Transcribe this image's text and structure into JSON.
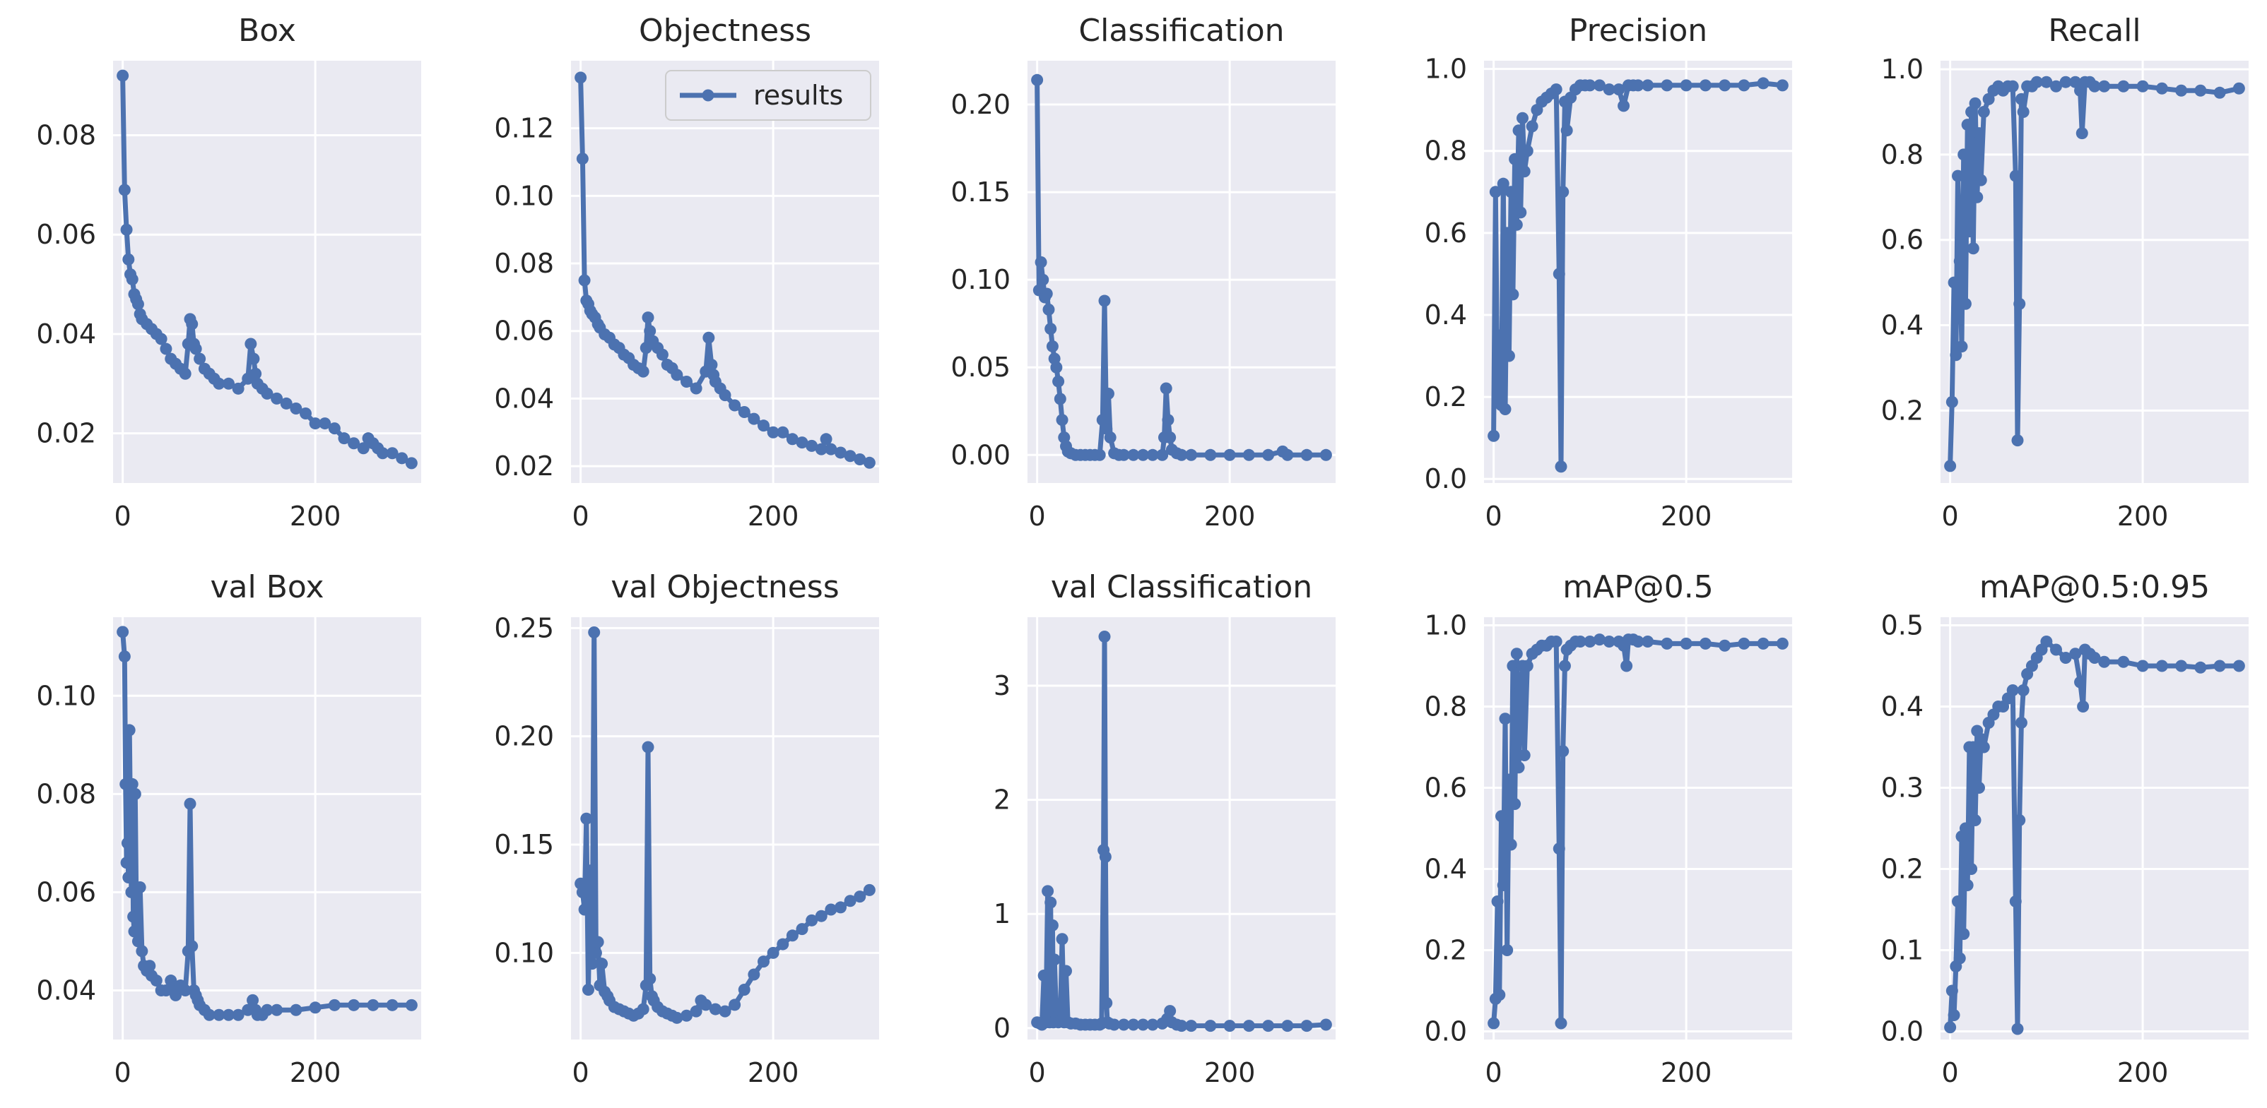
{
  "figure": {
    "style": "seaborn-darkgrid",
    "colors": {
      "background": "#eaeaf2",
      "grid": "#ffffff",
      "line": "#4c72b0",
      "text": "#262626"
    }
  },
  "chart_data": [
    {
      "id": "box",
      "type": "line",
      "title": "Box",
      "xlim": [
        -10,
        310
      ],
      "ylim": [
        0.01,
        0.095
      ],
      "xticks": [
        0,
        200
      ],
      "yticks": [
        0.02,
        0.04,
        0.06,
        0.08
      ],
      "x": [
        0,
        2,
        4,
        6,
        8,
        10,
        12,
        14,
        16,
        18,
        20,
        25,
        30,
        35,
        40,
        45,
        50,
        55,
        60,
        65,
        68,
        70,
        72,
        74,
        76,
        80,
        85,
        90,
        95,
        100,
        110,
        120,
        130,
        133,
        136,
        138,
        140,
        145,
        150,
        160,
        170,
        180,
        190,
        200,
        210,
        220,
        230,
        240,
        250,
        255,
        260,
        265,
        270,
        280,
        290,
        300
      ],
      "values": [
        0.092,
        0.069,
        0.061,
        0.055,
        0.052,
        0.051,
        0.048,
        0.047,
        0.046,
        0.044,
        0.043,
        0.042,
        0.041,
        0.04,
        0.039,
        0.037,
        0.035,
        0.034,
        0.033,
        0.032,
        0.038,
        0.043,
        0.042,
        0.038,
        0.037,
        0.035,
        0.033,
        0.032,
        0.031,
        0.03,
        0.03,
        0.029,
        0.031,
        0.038,
        0.035,
        0.032,
        0.03,
        0.029,
        0.028,
        0.027,
        0.026,
        0.025,
        0.024,
        0.022,
        0.022,
        0.021,
        0.019,
        0.018,
        0.017,
        0.019,
        0.018,
        0.017,
        0.016,
        0.016,
        0.015,
        0.014
      ]
    },
    {
      "id": "objectness",
      "type": "line",
      "title": "Objectness",
      "xlim": [
        -10,
        310
      ],
      "ylim": [
        0.015,
        0.14
      ],
      "xticks": [
        0,
        200
      ],
      "yticks": [
        0.02,
        0.04,
        0.06,
        0.08,
        0.1,
        0.12
      ],
      "legend": {
        "label": "results",
        "loc": "upper right"
      },
      "x": [
        0,
        2,
        4,
        6,
        8,
        10,
        12,
        15,
        18,
        20,
        25,
        30,
        35,
        40,
        45,
        50,
        55,
        60,
        65,
        68,
        70,
        72,
        75,
        80,
        85,
        90,
        95,
        100,
        110,
        120,
        130,
        133,
        136,
        138,
        140,
        145,
        150,
        160,
        170,
        180,
        190,
        200,
        210,
        220,
        230,
        240,
        250,
        255,
        260,
        270,
        280,
        290,
        300
      ],
      "values": [
        0.135,
        0.111,
        0.075,
        0.069,
        0.068,
        0.066,
        0.065,
        0.064,
        0.062,
        0.061,
        0.059,
        0.058,
        0.056,
        0.055,
        0.053,
        0.052,
        0.05,
        0.049,
        0.048,
        0.055,
        0.064,
        0.06,
        0.057,
        0.055,
        0.053,
        0.05,
        0.049,
        0.047,
        0.045,
        0.043,
        0.048,
        0.058,
        0.05,
        0.047,
        0.045,
        0.043,
        0.041,
        0.038,
        0.036,
        0.034,
        0.032,
        0.03,
        0.03,
        0.028,
        0.027,
        0.026,
        0.025,
        0.028,
        0.025,
        0.024,
        0.023,
        0.022,
        0.021
      ]
    },
    {
      "id": "classification",
      "type": "line",
      "title": "Classification",
      "xlim": [
        -10,
        310
      ],
      "ylim": [
        -0.016,
        0.225
      ],
      "xticks": [
        0,
        200
      ],
      "yticks": [
        0.0,
        0.05,
        0.1,
        0.15,
        0.2
      ],
      "x": [
        0,
        2,
        4,
        6,
        8,
        10,
        12,
        14,
        16,
        18,
        20,
        22,
        24,
        26,
        28,
        30,
        32,
        35,
        40,
        45,
        50,
        55,
        60,
        65,
        68,
        70,
        72,
        74,
        76,
        80,
        85,
        90,
        100,
        110,
        120,
        130,
        132,
        134,
        136,
        138,
        140,
        145,
        150,
        160,
        180,
        200,
        220,
        240,
        255,
        260,
        280,
        300
      ],
      "values": [
        0.214,
        0.094,
        0.11,
        0.1,
        0.09,
        0.092,
        0.083,
        0.072,
        0.062,
        0.055,
        0.05,
        0.042,
        0.032,
        0.02,
        0.01,
        0.005,
        0.002,
        0.001,
        0.0,
        0.0,
        0.0,
        0.0,
        0.0,
        0.0,
        0.02,
        0.088,
        0.015,
        0.035,
        0.01,
        0.001,
        0.0,
        0.0,
        0.0,
        0.0,
        0.0,
        0.0,
        0.01,
        0.038,
        0.02,
        0.01,
        0.003,
        0.001,
        0.0,
        0.0,
        0.0,
        0.0,
        0.0,
        0.0,
        0.002,
        0.0,
        0.0,
        0.0
      ]
    },
    {
      "id": "precision",
      "type": "line",
      "title": "Precision",
      "xlim": [
        -10,
        310
      ],
      "ylim": [
        -0.01,
        1.02
      ],
      "xticks": [
        0,
        200
      ],
      "yticks": [
        0.0,
        0.2,
        0.4,
        0.6,
        0.8,
        1.0
      ],
      "x": [
        0,
        2,
        4,
        6,
        8,
        10,
        12,
        14,
        16,
        18,
        20,
        22,
        24,
        26,
        28,
        30,
        32,
        35,
        40,
        45,
        50,
        55,
        60,
        65,
        68,
        70,
        72,
        74,
        76,
        80,
        85,
        90,
        95,
        100,
        110,
        120,
        130,
        135,
        140,
        145,
        150,
        160,
        180,
        200,
        220,
        240,
        260,
        280,
        300
      ],
      "values": [
        0.105,
        0.7,
        0.2,
        0.35,
        0.18,
        0.72,
        0.17,
        0.6,
        0.3,
        0.7,
        0.45,
        0.78,
        0.62,
        0.85,
        0.65,
        0.88,
        0.75,
        0.8,
        0.86,
        0.9,
        0.92,
        0.93,
        0.94,
        0.95,
        0.5,
        0.03,
        0.7,
        0.92,
        0.85,
        0.93,
        0.95,
        0.96,
        0.96,
        0.96,
        0.96,
        0.95,
        0.95,
        0.91,
        0.96,
        0.96,
        0.96,
        0.96,
        0.96,
        0.96,
        0.96,
        0.96,
        0.96,
        0.965,
        0.96
      ]
    },
    {
      "id": "recall",
      "type": "line",
      "title": "Recall",
      "xlim": [
        -10,
        310
      ],
      "ylim": [
        0.03,
        1.02
      ],
      "xticks": [
        0,
        200
      ],
      "yticks": [
        0.2,
        0.4,
        0.6,
        0.8,
        1.0
      ],
      "x": [
        0,
        2,
        4,
        6,
        8,
        10,
        12,
        14,
        16,
        18,
        20,
        22,
        24,
        26,
        28,
        30,
        32,
        35,
        40,
        45,
        50,
        55,
        60,
        65,
        68,
        70,
        72,
        74,
        76,
        80,
        85,
        90,
        100,
        110,
        120,
        130,
        135,
        137,
        140,
        145,
        150,
        160,
        180,
        200,
        220,
        240,
        260,
        280,
        300
      ],
      "values": [
        0.07,
        0.22,
        0.5,
        0.33,
        0.75,
        0.55,
        0.35,
        0.8,
        0.45,
        0.87,
        0.62,
        0.9,
        0.58,
        0.92,
        0.7,
        0.85,
        0.74,
        0.9,
        0.93,
        0.95,
        0.96,
        0.95,
        0.96,
        0.96,
        0.75,
        0.13,
        0.45,
        0.93,
        0.9,
        0.96,
        0.96,
        0.97,
        0.97,
        0.96,
        0.97,
        0.97,
        0.95,
        0.85,
        0.97,
        0.97,
        0.96,
        0.96,
        0.96,
        0.96,
        0.955,
        0.95,
        0.95,
        0.945,
        0.955
      ]
    },
    {
      "id": "val-box",
      "type": "line",
      "title": "val Box",
      "xlim": [
        -10,
        310
      ],
      "ylim": [
        0.03,
        0.116
      ],
      "xticks": [
        0,
        200
      ],
      "yticks": [
        0.04,
        0.06,
        0.08,
        0.1
      ],
      "x": [
        0,
        2,
        3,
        4,
        5,
        6,
        7,
        8,
        9,
        10,
        11,
        12,
        13,
        14,
        15,
        16,
        18,
        20,
        22,
        25,
        28,
        30,
        35,
        40,
        45,
        50,
        55,
        60,
        65,
        68,
        70,
        72,
        74,
        76,
        78,
        80,
        85,
        90,
        100,
        110,
        120,
        130,
        135,
        138,
        140,
        145,
        150,
        160,
        180,
        200,
        220,
        240,
        260,
        280,
        300
      ],
      "values": [
        0.113,
        0.108,
        0.082,
        0.066,
        0.07,
        0.063,
        0.093,
        0.075,
        0.06,
        0.082,
        0.055,
        0.052,
        0.08,
        0.06,
        0.055,
        0.05,
        0.061,
        0.048,
        0.045,
        0.044,
        0.045,
        0.043,
        0.042,
        0.04,
        0.04,
        0.042,
        0.039,
        0.041,
        0.04,
        0.048,
        0.078,
        0.049,
        0.04,
        0.039,
        0.038,
        0.037,
        0.036,
        0.035,
        0.035,
        0.035,
        0.035,
        0.036,
        0.038,
        0.036,
        0.035,
        0.035,
        0.036,
        0.036,
        0.036,
        0.0365,
        0.037,
        0.037,
        0.037,
        0.037,
        0.037
      ]
    },
    {
      "id": "val-objectness",
      "type": "line",
      "title": "val Objectness",
      "xlim": [
        -10,
        310
      ],
      "ylim": [
        0.06,
        0.255
      ],
      "xticks": [
        0,
        200
      ],
      "yticks": [
        0.1,
        0.15,
        0.2,
        0.25
      ],
      "x": [
        0,
        2,
        4,
        6,
        8,
        10,
        12,
        14,
        16,
        18,
        20,
        22,
        25,
        28,
        30,
        35,
        40,
        45,
        50,
        55,
        60,
        65,
        68,
        70,
        72,
        74,
        76,
        80,
        85,
        90,
        95,
        100,
        110,
        120,
        125,
        130,
        140,
        150,
        160,
        170,
        180,
        190,
        200,
        210,
        220,
        230,
        240,
        250,
        260,
        270,
        280,
        290,
        300
      ],
      "values": [
        0.132,
        0.128,
        0.12,
        0.162,
        0.083,
        0.138,
        0.095,
        0.248,
        0.1,
        0.105,
        0.085,
        0.095,
        0.082,
        0.08,
        0.078,
        0.075,
        0.074,
        0.073,
        0.072,
        0.071,
        0.072,
        0.074,
        0.085,
        0.195,
        0.088,
        0.08,
        0.078,
        0.075,
        0.073,
        0.072,
        0.071,
        0.07,
        0.071,
        0.073,
        0.078,
        0.076,
        0.074,
        0.073,
        0.076,
        0.083,
        0.09,
        0.096,
        0.1,
        0.104,
        0.108,
        0.111,
        0.115,
        0.117,
        0.12,
        0.121,
        0.124,
        0.126,
        0.129
      ]
    },
    {
      "id": "val-classification",
      "type": "line",
      "title": "val Classification",
      "xlim": [
        -10,
        310
      ],
      "ylim": [
        -0.1,
        3.6
      ],
      "xticks": [
        0,
        200
      ],
      "yticks": [
        0,
        1,
        2,
        3
      ],
      "x": [
        0,
        3,
        5,
        7,
        9,
        11,
        12,
        13,
        14,
        15,
        16,
        17,
        18,
        20,
        22,
        24,
        26,
        28,
        30,
        32,
        35,
        40,
        45,
        50,
        55,
        60,
        65,
        67,
        69,
        70,
        71,
        72,
        73,
        75,
        80,
        90,
        100,
        110,
        120,
        130,
        135,
        138,
        140,
        145,
        150,
        160,
        180,
        200,
        220,
        240,
        260,
        280,
        300
      ],
      "values": [
        0.05,
        0.04,
        0.03,
        0.46,
        0.05,
        1.2,
        0.3,
        0.05,
        1.1,
        0.2,
        0.9,
        0.05,
        0.6,
        0.1,
        0.05,
        0.06,
        0.78,
        0.05,
        0.5,
        0.05,
        0.04,
        0.04,
        0.03,
        0.03,
        0.03,
        0.03,
        0.03,
        0.04,
        1.56,
        3.43,
        1.5,
        0.22,
        0.05,
        0.04,
        0.03,
        0.03,
        0.03,
        0.03,
        0.03,
        0.04,
        0.08,
        0.15,
        0.05,
        0.03,
        0.02,
        0.02,
        0.02,
        0.02,
        0.02,
        0.02,
        0.02,
        0.02,
        0.03
      ]
    },
    {
      "id": "map50",
      "type": "line",
      "title": "mAP@0.5",
      "xlim": [
        -10,
        310
      ],
      "ylim": [
        -0.02,
        1.02
      ],
      "xticks": [
        0,
        200
      ],
      "yticks": [
        0.0,
        0.2,
        0.4,
        0.6,
        0.8,
        1.0
      ],
      "x": [
        0,
        2,
        4,
        6,
        8,
        10,
        12,
        14,
        16,
        18,
        20,
        22,
        24,
        26,
        28,
        30,
        32,
        35,
        40,
        45,
        50,
        55,
        60,
        65,
        68,
        70,
        72,
        74,
        76,
        80,
        85,
        90,
        100,
        110,
        120,
        130,
        135,
        138,
        140,
        145,
        150,
        160,
        180,
        200,
        220,
        240,
        260,
        280,
        300
      ],
      "values": [
        0.02,
        0.08,
        0.32,
        0.09,
        0.53,
        0.36,
        0.77,
        0.2,
        0.62,
        0.46,
        0.9,
        0.56,
        0.93,
        0.65,
        0.84,
        0.9,
        0.68,
        0.9,
        0.93,
        0.94,
        0.95,
        0.95,
        0.96,
        0.96,
        0.45,
        0.02,
        0.69,
        0.9,
        0.94,
        0.95,
        0.96,
        0.96,
        0.96,
        0.965,
        0.96,
        0.96,
        0.95,
        0.9,
        0.965,
        0.965,
        0.96,
        0.96,
        0.955,
        0.955,
        0.955,
        0.95,
        0.955,
        0.955,
        0.955
      ]
    },
    {
      "id": "map50-95",
      "type": "line",
      "title": "mAP@0.5:0.95",
      "xlim": [
        -10,
        310
      ],
      "ylim": [
        -0.01,
        0.51
      ],
      "xticks": [
        0,
        200
      ],
      "yticks": [
        0.0,
        0.1,
        0.2,
        0.3,
        0.4,
        0.5
      ],
      "x": [
        0,
        2,
        4,
        6,
        8,
        10,
        12,
        14,
        16,
        18,
        20,
        22,
        24,
        26,
        28,
        30,
        32,
        35,
        40,
        45,
        50,
        55,
        60,
        65,
        68,
        70,
        72,
        74,
        76,
        80,
        85,
        90,
        95,
        100,
        110,
        120,
        130,
        135,
        138,
        140,
        145,
        150,
        160,
        180,
        200,
        220,
        240,
        260,
        280,
        300
      ],
      "values": [
        0.005,
        0.05,
        0.02,
        0.08,
        0.16,
        0.09,
        0.24,
        0.12,
        0.25,
        0.18,
        0.35,
        0.2,
        0.35,
        0.26,
        0.37,
        0.3,
        0.36,
        0.35,
        0.38,
        0.39,
        0.4,
        0.4,
        0.41,
        0.42,
        0.16,
        0.003,
        0.26,
        0.38,
        0.42,
        0.44,
        0.45,
        0.46,
        0.47,
        0.48,
        0.47,
        0.46,
        0.465,
        0.43,
        0.4,
        0.47,
        0.465,
        0.46,
        0.455,
        0.455,
        0.45,
        0.45,
        0.45,
        0.448,
        0.45,
        0.45
      ]
    }
  ]
}
